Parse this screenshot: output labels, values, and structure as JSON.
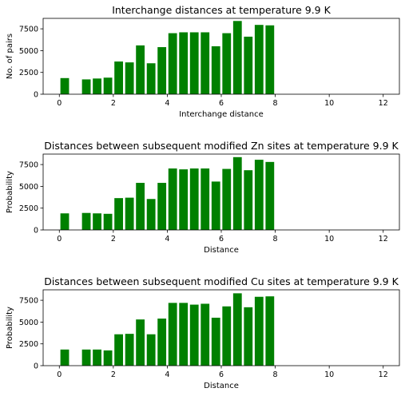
{
  "chart_data": [
    {
      "type": "bar",
      "title": "Interchange distances at temperature 9.9 K",
      "xlabel": "Interchange distance",
      "ylabel": "No. of pairs",
      "xlim": [
        -0.6,
        12.6
      ],
      "ylim": [
        0,
        8700
      ],
      "xticks": [
        0,
        2,
        4,
        6,
        8,
        10,
        12
      ],
      "yticks": [
        0,
        2500,
        5000,
        7500
      ],
      "color": "#008000",
      "bar_width": 0.32,
      "x": [
        0.2,
        1.0,
        1.4,
        1.8,
        2.2,
        2.6,
        3.0,
        3.4,
        3.8,
        4.2,
        4.6,
        5.0,
        5.4,
        5.8,
        6.2,
        6.6,
        7.0,
        7.4,
        7.8
      ],
      "values": [
        1850,
        1700,
        1800,
        1900,
        3750,
        3650,
        5600,
        3550,
        5400,
        7000,
        7100,
        7100,
        7100,
        5500,
        7000,
        8400,
        6600,
        7950,
        7900
      ]
    },
    {
      "type": "bar",
      "title": "Distances between subsequent modified Zn sites at temperature 9.9 K",
      "xlabel": "Distance",
      "ylabel": "Probability",
      "xlim": [
        -0.6,
        12.6
      ],
      "ylim": [
        0,
        8700
      ],
      "xticks": [
        0,
        2,
        4,
        6,
        8,
        10,
        12
      ],
      "yticks": [
        0,
        2500,
        5000,
        7500
      ],
      "color": "#008000",
      "bar_width": 0.32,
      "x": [
        0.2,
        1.0,
        1.4,
        1.8,
        2.2,
        2.6,
        3.0,
        3.4,
        3.8,
        4.2,
        4.6,
        5.0,
        5.4,
        5.8,
        6.2,
        6.6,
        7.0,
        7.4,
        7.8
      ],
      "values": [
        1900,
        1950,
        1900,
        1850,
        3650,
        3700,
        5400,
        3550,
        5400,
        7050,
        6950,
        7050,
        7050,
        5550,
        7000,
        8350,
        6850,
        8050,
        7800
      ]
    },
    {
      "type": "bar",
      "title": "Distances between subsequent modified Cu sites at temperature 9.9 K",
      "xlabel": "Distance",
      "ylabel": "Probability",
      "xlim": [
        -0.6,
        12.6
      ],
      "ylim": [
        0,
        8700
      ],
      "xticks": [
        0,
        2,
        4,
        6,
        8,
        10,
        12
      ],
      "yticks": [
        0,
        2500,
        5000,
        7500
      ],
      "color": "#008000",
      "bar_width": 0.32,
      "x": [
        0.2,
        1.0,
        1.4,
        1.8,
        2.2,
        2.6,
        3.0,
        3.4,
        3.8,
        4.2,
        4.6,
        5.0,
        5.4,
        5.8,
        6.2,
        6.6,
        7.0,
        7.4,
        7.8
      ],
      "values": [
        1850,
        1850,
        1850,
        1750,
        3600,
        3650,
        5300,
        3600,
        5400,
        7200,
        7200,
        7000,
        7100,
        5500,
        6800,
        8300,
        6700,
        7900,
        7950
      ]
    }
  ]
}
